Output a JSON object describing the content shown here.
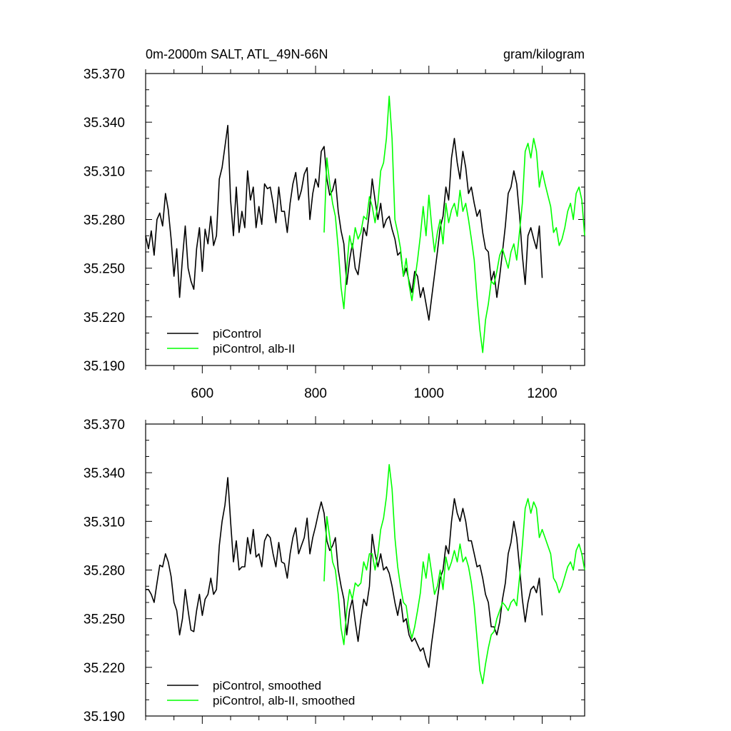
{
  "chart_data": [
    {
      "type": "line",
      "title": "0m-2000m SALT, ATL_49N-66N",
      "units": "gram/kilogram",
      "xlim": [
        500,
        1275
      ],
      "ylim": [
        35.19,
        35.37
      ],
      "x_ticks": [
        600,
        800,
        1000,
        1200
      ],
      "x_tick_labels": [
        "600",
        "800",
        "1000",
        "1200"
      ],
      "y_ticks": [
        35.19,
        35.22,
        35.25,
        35.28,
        35.31,
        35.34,
        35.37
      ],
      "y_tick_labels": [
        "35.190",
        "35.220",
        "35.250",
        "35.280",
        "35.310",
        "35.340",
        "35.370"
      ],
      "legend": [
        "piControl",
        "piControl, alb-II"
      ],
      "series": [
        {
          "name": "piControl",
          "color": "#000000",
          "x": [
            500,
            505,
            510,
            515,
            520,
            525,
            530,
            535,
            540,
            545,
            550,
            555,
            560,
            565,
            570,
            575,
            580,
            585,
            590,
            595,
            600,
            605,
            610,
            615,
            620,
            625,
            630,
            635,
            640,
            645,
            650,
            655,
            660,
            665,
            670,
            675,
            680,
            685,
            690,
            695,
            700,
            705,
            710,
            715,
            720,
            725,
            730,
            735,
            740,
            745,
            750,
            755,
            760,
            765,
            770,
            775,
            780,
            785,
            790,
            795,
            800,
            805,
            810,
            815,
            820,
            825,
            830,
            835,
            840,
            845,
            850,
            855,
            860,
            865,
            870,
            875,
            880,
            885,
            890,
            895,
            900,
            905,
            910,
            915,
            920,
            925,
            930,
            935,
            940,
            945,
            950,
            955,
            960,
            965,
            970,
            975,
            980,
            985,
            990,
            995,
            1000,
            1005,
            1010,
            1015,
            1020,
            1025,
            1030,
            1035,
            1040,
            1045,
            1050,
            1055,
            1060,
            1065,
            1070,
            1075,
            1080,
            1085,
            1090,
            1095,
            1100,
            1105,
            1110,
            1115,
            1120,
            1125,
            1130,
            1135,
            1140,
            1145,
            1150,
            1155,
            1160,
            1165,
            1170,
            1175,
            1180,
            1185,
            1190,
            1195,
            1200
          ],
          "values": [
            35.27,
            35.262,
            35.273,
            35.258,
            35.28,
            35.284,
            35.276,
            35.296,
            35.286,
            35.268,
            35.245,
            35.262,
            35.232,
            35.256,
            35.276,
            35.25,
            35.242,
            35.237,
            35.262,
            35.275,
            35.248,
            35.274,
            35.265,
            35.282,
            35.264,
            35.27,
            35.305,
            35.312,
            35.325,
            35.338,
            35.292,
            35.27,
            35.3,
            35.272,
            35.285,
            35.275,
            35.31,
            35.292,
            35.3,
            35.275,
            35.288,
            35.277,
            35.302,
            35.299,
            35.3,
            35.29,
            35.278,
            35.3,
            35.285,
            35.285,
            35.272,
            35.29,
            35.302,
            35.309,
            35.292,
            35.298,
            35.308,
            35.312,
            35.28,
            35.296,
            35.305,
            35.3,
            35.322,
            35.325,
            35.305,
            35.295,
            35.298,
            35.305,
            35.285,
            35.273,
            35.265,
            35.24,
            35.255,
            35.265,
            35.25,
            35.246,
            35.26,
            35.275,
            35.27,
            35.285,
            35.305,
            35.292,
            35.28,
            35.29,
            35.275,
            35.28,
            35.282,
            35.274,
            35.268,
            35.258,
            35.26,
            35.245,
            35.25,
            35.242,
            35.235,
            35.248,
            35.245,
            35.232,
            35.238,
            35.228,
            35.218,
            35.232,
            35.246,
            35.26,
            35.275,
            35.282,
            35.3,
            35.292,
            35.318,
            35.33,
            35.315,
            35.305,
            35.322,
            35.312,
            35.296,
            35.3,
            35.29,
            35.282,
            35.286,
            35.272,
            35.262,
            35.26,
            35.242,
            35.248,
            35.232,
            35.245,
            35.26,
            35.276,
            35.296,
            35.3,
            35.31,
            35.302,
            35.283,
            35.258,
            35.24,
            35.27,
            35.275,
            35.268,
            35.262,
            35.276,
            35.244
          ]
        },
        {
          "name": "piControl, alb-II",
          "color": "#00ff00",
          "x": [
            815,
            820,
            825,
            830,
            835,
            840,
            845,
            850,
            855,
            860,
            865,
            870,
            875,
            880,
            885,
            890,
            895,
            900,
            905,
            910,
            915,
            920,
            925,
            930,
            935,
            940,
            945,
            950,
            955,
            960,
            965,
            970,
            975,
            980,
            985,
            990,
            995,
            1000,
            1005,
            1010,
            1015,
            1020,
            1025,
            1030,
            1035,
            1040,
            1045,
            1050,
            1055,
            1060,
            1065,
            1070,
            1075,
            1080,
            1085,
            1090,
            1095,
            1100,
            1105,
            1110,
            1115,
            1120,
            1125,
            1130,
            1135,
            1140,
            1145,
            1150,
            1155,
            1160,
            1165,
            1170,
            1175,
            1180,
            1185,
            1190,
            1195,
            1200,
            1205,
            1210,
            1215,
            1220,
            1225,
            1230,
            1235,
            1240,
            1245,
            1250,
            1255,
            1260,
            1265,
            1270,
            1275
          ],
          "values": [
            35.272,
            35.318,
            35.302,
            35.29,
            35.282,
            35.262,
            35.238,
            35.225,
            35.25,
            35.27,
            35.262,
            35.275,
            35.268,
            35.272,
            35.282,
            35.28,
            35.294,
            35.288,
            35.278,
            35.29,
            35.31,
            35.315,
            35.33,
            35.356,
            35.33,
            35.28,
            35.272,
            35.262,
            35.245,
            35.256,
            35.24,
            35.23,
            35.242,
            35.255,
            35.27,
            35.288,
            35.27,
            35.295,
            35.276,
            35.26,
            35.272,
            35.28,
            35.265,
            35.29,
            35.278,
            35.286,
            35.29,
            35.282,
            35.298,
            35.285,
            35.29,
            35.28,
            35.268,
            35.255,
            35.232,
            35.212,
            35.198,
            35.218,
            35.228,
            35.242,
            35.24,
            35.248,
            35.258,
            35.262,
            35.256,
            35.25,
            35.26,
            35.265,
            35.255,
            35.272,
            35.29,
            35.322,
            35.327,
            35.318,
            35.33,
            35.322,
            35.3,
            35.31,
            35.302,
            35.295,
            35.288,
            35.272,
            35.275,
            35.264,
            35.268,
            35.275,
            35.285,
            35.29,
            35.28,
            35.296,
            35.3,
            35.292,
            35.27
          ]
        }
      ]
    },
    {
      "type": "line",
      "xlim": [
        500,
        1275
      ],
      "ylim": [
        35.19,
        35.37
      ],
      "x_ticks": [
        600,
        800,
        1000,
        1200
      ],
      "y_ticks": [
        35.19,
        35.22,
        35.25,
        35.28,
        35.31,
        35.34,
        35.37
      ],
      "y_tick_labels": [
        "35.190",
        "35.220",
        "35.250",
        "35.280",
        "35.310",
        "35.340",
        "35.370"
      ],
      "legend": [
        "piControl, smoothed",
        "piControl, alb-II, smoothed"
      ],
      "series": [
        {
          "name": "piControl, smoothed",
          "color": "#000000",
          "x": [
            500,
            505,
            510,
            515,
            520,
            525,
            530,
            535,
            540,
            545,
            550,
            555,
            560,
            565,
            570,
            575,
            580,
            585,
            590,
            595,
            600,
            605,
            610,
            615,
            620,
            625,
            630,
            635,
            640,
            645,
            650,
            655,
            660,
            665,
            670,
            675,
            680,
            685,
            690,
            695,
            700,
            705,
            710,
            715,
            720,
            725,
            730,
            735,
            740,
            745,
            750,
            755,
            760,
            765,
            770,
            775,
            780,
            785,
            790,
            795,
            800,
            805,
            810,
            815,
            820,
            825,
            830,
            835,
            840,
            845,
            850,
            855,
            860,
            865,
            870,
            875,
            880,
            885,
            890,
            895,
            900,
            905,
            910,
            915,
            920,
            925,
            930,
            935,
            940,
            945,
            950,
            955,
            960,
            965,
            970,
            975,
            980,
            985,
            990,
            995,
            1000,
            1005,
            1010,
            1015,
            1020,
            1025,
            1030,
            1035,
            1040,
            1045,
            1050,
            1055,
            1060,
            1065,
            1070,
            1075,
            1080,
            1085,
            1090,
            1095,
            1100,
            1105,
            1110,
            1115,
            1120,
            1125,
            1130,
            1135,
            1140,
            1145,
            1150,
            1155,
            1160,
            1165,
            1170,
            1175,
            1180,
            1185,
            1190,
            1195,
            1200
          ],
          "values": [
            35.268,
            35.268,
            35.265,
            35.26,
            35.272,
            35.283,
            35.282,
            35.29,
            35.285,
            35.276,
            35.26,
            35.255,
            35.24,
            35.25,
            35.268,
            35.255,
            35.243,
            35.242,
            35.255,
            35.265,
            35.252,
            35.262,
            35.265,
            35.275,
            35.265,
            35.268,
            35.295,
            35.31,
            35.32,
            35.337,
            35.31,
            35.285,
            35.298,
            35.28,
            35.282,
            35.282,
            35.3,
            35.29,
            35.305,
            35.288,
            35.29,
            35.282,
            35.298,
            35.302,
            35.3,
            35.29,
            35.282,
            35.297,
            35.285,
            35.284,
            35.275,
            35.29,
            35.3,
            35.306,
            35.29,
            35.295,
            35.3,
            35.312,
            35.29,
            35.3,
            35.307,
            35.315,
            35.322,
            35.315,
            35.298,
            35.292,
            35.295,
            35.3,
            35.28,
            35.27,
            35.262,
            35.24,
            35.255,
            35.262,
            35.248,
            35.236,
            35.25,
            35.262,
            35.258,
            35.27,
            35.302,
            35.29,
            35.282,
            35.29,
            35.28,
            35.282,
            35.278,
            35.27,
            35.26,
            35.252,
            35.262,
            35.248,
            35.25,
            35.24,
            35.236,
            35.238,
            35.234,
            35.23,
            35.232,
            35.225,
            35.22,
            35.235,
            35.248,
            35.262,
            35.275,
            35.28,
            35.295,
            35.29,
            35.31,
            35.324,
            35.315,
            35.31,
            35.318,
            35.31,
            35.298,
            35.298,
            35.29,
            35.282,
            35.283,
            35.275,
            35.265,
            35.26,
            35.245,
            35.245,
            35.24,
            35.248,
            35.262,
            35.272,
            35.29,
            35.297,
            35.31,
            35.3,
            35.282,
            35.262,
            35.248,
            35.26,
            35.268,
            35.27,
            35.266,
            35.275,
            35.252
          ]
        },
        {
          "name": "piControl, alb-II, smoothed",
          "color": "#00ff00",
          "x": [
            815,
            820,
            825,
            830,
            835,
            840,
            845,
            850,
            855,
            860,
            865,
            870,
            875,
            880,
            885,
            890,
            895,
            900,
            905,
            910,
            915,
            920,
            925,
            930,
            935,
            940,
            945,
            950,
            955,
            960,
            965,
            970,
            975,
            980,
            985,
            990,
            995,
            1000,
            1005,
            1010,
            1015,
            1020,
            1025,
            1030,
            1035,
            1040,
            1045,
            1050,
            1055,
            1060,
            1065,
            1070,
            1075,
            1080,
            1085,
            1090,
            1095,
            1100,
            1105,
            1110,
            1115,
            1120,
            1125,
            1130,
            1135,
            1140,
            1145,
            1150,
            1155,
            1160,
            1165,
            1170,
            1175,
            1180,
            1185,
            1190,
            1195,
            1200,
            1205,
            1210,
            1215,
            1220,
            1225,
            1230,
            1235,
            1240,
            1245,
            1250,
            1255,
            1260,
            1265,
            1270,
            1275
          ],
          "values": [
            35.273,
            35.313,
            35.3,
            35.285,
            35.28,
            35.265,
            35.244,
            35.234,
            35.255,
            35.268,
            35.262,
            35.272,
            35.27,
            35.272,
            35.285,
            35.28,
            35.29,
            35.29,
            35.28,
            35.29,
            35.305,
            35.312,
            35.325,
            35.345,
            35.33,
            35.3,
            35.282,
            35.27,
            35.26,
            35.258,
            35.245,
            35.238,
            35.245,
            35.255,
            35.266,
            35.285,
            35.275,
            35.29,
            35.278,
            35.265,
            35.27,
            35.28,
            35.268,
            35.288,
            35.28,
            35.285,
            35.292,
            35.285,
            35.296,
            35.285,
            35.288,
            35.282,
            35.272,
            35.258,
            35.238,
            35.218,
            35.21,
            35.222,
            35.232,
            35.24,
            35.242,
            35.25,
            35.255,
            35.26,
            35.258,
            35.255,
            35.26,
            35.262,
            35.258,
            35.275,
            35.295,
            35.318,
            35.324,
            35.315,
            35.322,
            35.318,
            35.3,
            35.305,
            35.3,
            35.295,
            35.29,
            35.275,
            35.272,
            35.266,
            35.27,
            35.276,
            35.282,
            35.285,
            35.28,
            35.292,
            35.296,
            35.29,
            35.28
          ]
        }
      ]
    }
  ]
}
